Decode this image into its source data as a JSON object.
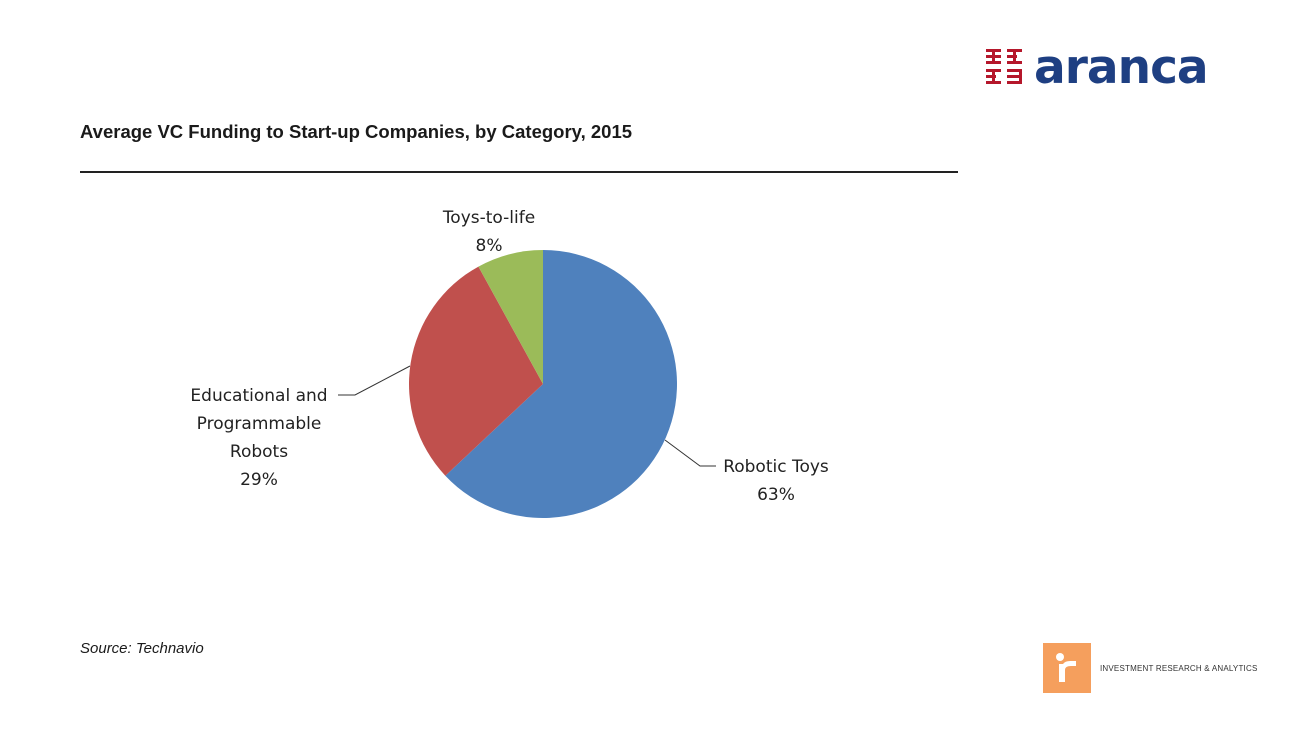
{
  "brand": {
    "name": "aranca",
    "tagline": "INVESTMENT RESEARCH & ANALYTICS",
    "colors": {
      "wordmark": "#1e3f82",
      "mark": "#b5172b",
      "badge": "#f59f5d"
    },
    "icons": {
      "top": "aranca-seal-icon",
      "bottom": "aranca-r-badge-icon"
    }
  },
  "chart_data": {
    "type": "pie",
    "title": "Average VC Funding to Start-up Companies, by Category, 2015",
    "slices": [
      {
        "label": [
          "Robotic Toys"
        ],
        "value": 63,
        "display": "63%",
        "color": "#4f81bd"
      },
      {
        "label": [
          "Educational and",
          "Programmable",
          "Robots"
        ],
        "value": 29,
        "display": "29%",
        "color": "#c0504d"
      },
      {
        "label": [
          "Toys-to-life"
        ],
        "value": 8,
        "display": "8%",
        "color": "#9bbb59"
      }
    ],
    "start_angle": "12 o'clock",
    "direction": "clockwise",
    "legend": "none",
    "data_labels": "outside with leader lines"
  },
  "source": "Source: Technavio"
}
